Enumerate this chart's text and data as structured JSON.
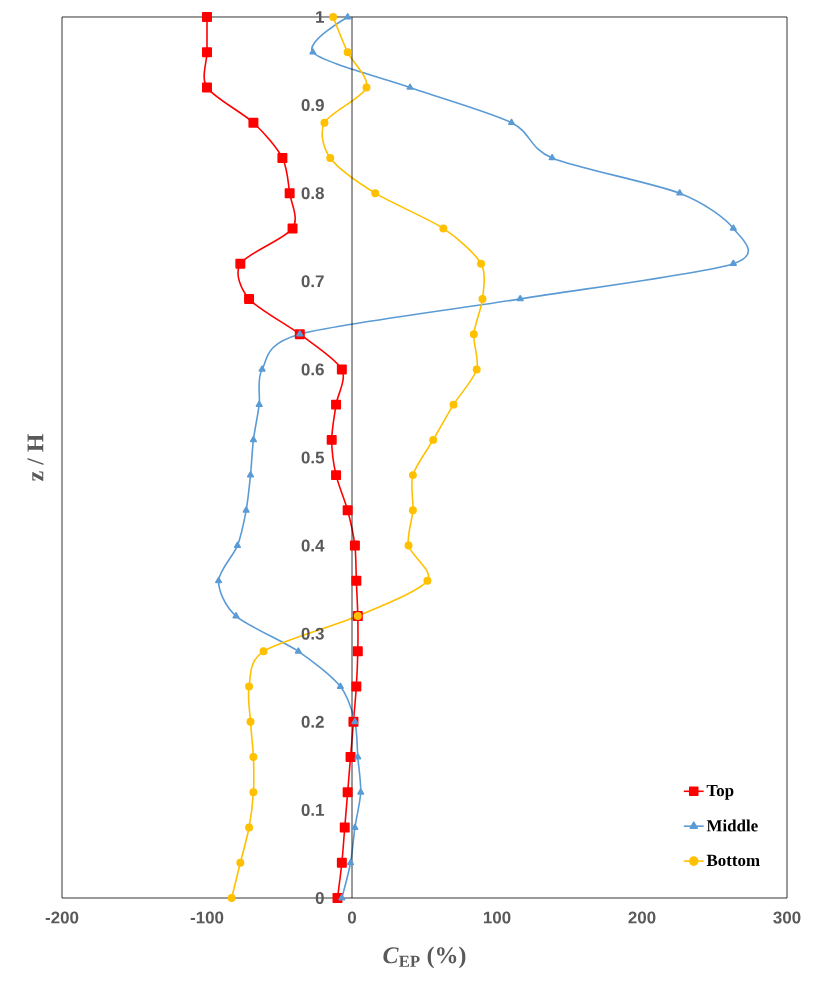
{
  "chart_data": {
    "type": "line",
    "xlabel": "*C*$_{EP}$ (%)",
    "ylabel": "z / H",
    "xlim": [
      -200,
      300
    ],
    "ylim": [
      0,
      1
    ],
    "xticks": [
      -200,
      -100,
      0,
      100,
      200,
      300
    ],
    "yticks": [
      0,
      0.1,
      0.2,
      0.3,
      0.4,
      0.5,
      0.6,
      0.7,
      0.8,
      0.9,
      1
    ],
    "grid": false,
    "legend": "bottom right",
    "line_style": "solid",
    "series": [
      {
        "name": "Top",
        "color": "#ff0000",
        "marker": "square",
        "x": [
          -10,
          -7,
          -5,
          -3,
          -1,
          1,
          3,
          4,
          4,
          3,
          2,
          -3,
          -11,
          -14,
          -11,
          -7,
          -36,
          -71,
          -77,
          -41,
          -43,
          -48,
          -68,
          -100,
          -100,
          -100
        ],
        "values": [
          0,
          0.04,
          0.08,
          0.12,
          0.16,
          0.2,
          0.24,
          0.28,
          0.32,
          0.36,
          0.4,
          0.44,
          0.48,
          0.52,
          0.56,
          0.6,
          0.64,
          0.68,
          0.72,
          0.76,
          0.8,
          0.84,
          0.88,
          0.92,
          0.96,
          1
        ]
      },
      {
        "name": "Middle",
        "color": "#5b9bd5",
        "marker": "triangle",
        "x": [
          -7,
          -1,
          2,
          6,
          4,
          2,
          -8,
          -37,
          -80,
          -92,
          -79,
          -73,
          -70,
          -68,
          -64,
          -62,
          -36,
          116,
          263,
          263,
          226,
          138,
          110,
          40,
          -27,
          -3
        ],
        "values": [
          0,
          0.04,
          0.08,
          0.12,
          0.16,
          0.2,
          0.24,
          0.28,
          0.32,
          0.36,
          0.4,
          0.44,
          0.48,
          0.52,
          0.56,
          0.6,
          0.64,
          0.68,
          0.72,
          0.76,
          0.8,
          0.84,
          0.88,
          0.92,
          0.96,
          1
        ]
      },
      {
        "name": "Bottom",
        "color": "#ffc000",
        "marker": "circle",
        "x": [
          -83,
          -77,
          -71,
          -68,
          -68,
          -70,
          -71,
          -61,
          4,
          52,
          39,
          42,
          42,
          56,
          70,
          86,
          84,
          90,
          89,
          63,
          16,
          -15,
          -19,
          10,
          -3,
          -13
        ],
        "values": [
          0,
          0.04,
          0.08,
          0.12,
          0.16,
          0.2,
          0.24,
          0.28,
          0.32,
          0.36,
          0.4,
          0.44,
          0.48,
          0.52,
          0.56,
          0.6,
          0.64,
          0.68,
          0.72,
          0.76,
          0.8,
          0.84,
          0.88,
          0.92,
          0.96,
          1
        ]
      }
    ]
  }
}
